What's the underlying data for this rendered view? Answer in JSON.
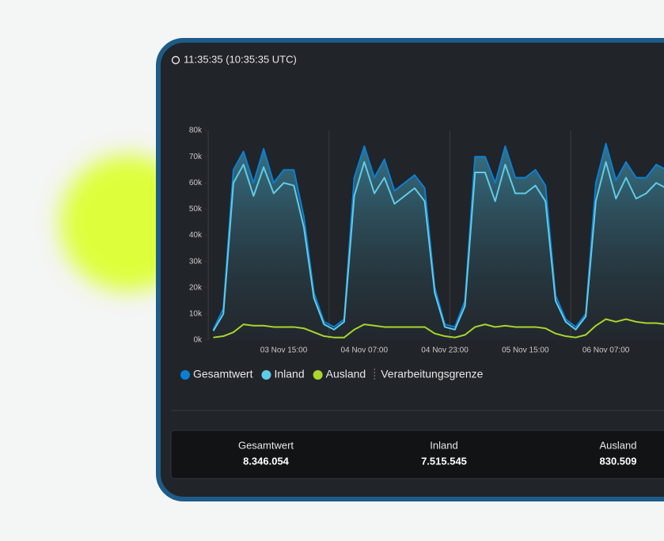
{
  "header": {
    "time": "11:35:35 (10:35:35 UTC)"
  },
  "chart_data": {
    "type": "line",
    "categories": [
      null,
      null,
      null,
      null,
      null,
      null,
      null,
      "03 Nov 15:00",
      null,
      null,
      null,
      null,
      null,
      null,
      null,
      "04 Nov 07:00",
      null,
      null,
      null,
      null,
      null,
      null,
      null,
      "04 Nov 23:00",
      null,
      null,
      null,
      null,
      null,
      null,
      null,
      "05 Nov 15:00",
      null,
      null,
      null,
      null,
      null,
      null,
      null,
      "06 Nov 07:00",
      null,
      null,
      null,
      null,
      null,
      null
    ],
    "series": [
      {
        "name": "Gesamtwert",
        "color": "#0b7fd4",
        "values": [
          4000,
          12000,
          65000,
          72000,
          60000,
          73000,
          60000,
          65000,
          65000,
          47000,
          18000,
          7000,
          5000,
          8000,
          62000,
          74000,
          62000,
          69000,
          57000,
          60000,
          63000,
          58000,
          20000,
          6000,
          5000,
          15000,
          70000,
          70000,
          60000,
          74000,
          62000,
          62000,
          65000,
          59000,
          17000,
          8000,
          5000,
          10000,
          60000,
          75000,
          61000,
          68000,
          62000,
          62000,
          67000,
          65000
        ]
      },
      {
        "name": "Inland",
        "color": "#5fcbe8",
        "values": [
          3500,
          10000,
          60000,
          67000,
          55000,
          66000,
          56000,
          60000,
          59000,
          43000,
          16000,
          6000,
          4000,
          7000,
          55000,
          68000,
          56000,
          62000,
          52000,
          55000,
          58000,
          53000,
          18000,
          5000,
          4000,
          13000,
          64000,
          64000,
          53000,
          67000,
          56000,
          56000,
          59000,
          53000,
          15000,
          7000,
          4000,
          9000,
          53000,
          68000,
          54000,
          62000,
          54000,
          56000,
          60000,
          58000
        ]
      },
      {
        "name": "Ausland",
        "color": "#a9d62c",
        "values": [
          1000,
          1500,
          3000,
          6000,
          5500,
          5500,
          5000,
          5000,
          5000,
          4500,
          3000,
          1500,
          1000,
          1000,
          4000,
          6000,
          5500,
          5000,
          5000,
          5000,
          5000,
          5000,
          2500,
          1500,
          1000,
          2000,
          5000,
          6000,
          5000,
          5500,
          5000,
          5000,
          5000,
          4500,
          2500,
          1500,
          1000,
          2000,
          5500,
          8000,
          7000,
          8000,
          7000,
          6500,
          6500,
          6000
        ]
      }
    ],
    "extra_legend": "Verarbeitungsgrenze",
    "ylim": [
      0,
      80000
    ],
    "yticks": [
      {
        "value": 0,
        "label": "0k"
      },
      {
        "value": 10000,
        "label": "10k"
      },
      {
        "value": 20000,
        "label": "20k"
      },
      {
        "value": 30000,
        "label": "30k"
      },
      {
        "value": 40000,
        "label": "40k"
      },
      {
        "value": 50000,
        "label": "50k"
      },
      {
        "value": 60000,
        "label": "60k"
      },
      {
        "value": 70000,
        "label": "70k"
      },
      {
        "value": 80000,
        "label": "80k"
      }
    ]
  },
  "summary": [
    {
      "label": "Gesamtwert",
      "value": "8.346.054"
    },
    {
      "label": "Inland",
      "value": "7.515.545"
    },
    {
      "label": "Ausland",
      "value": "830.509"
    }
  ]
}
